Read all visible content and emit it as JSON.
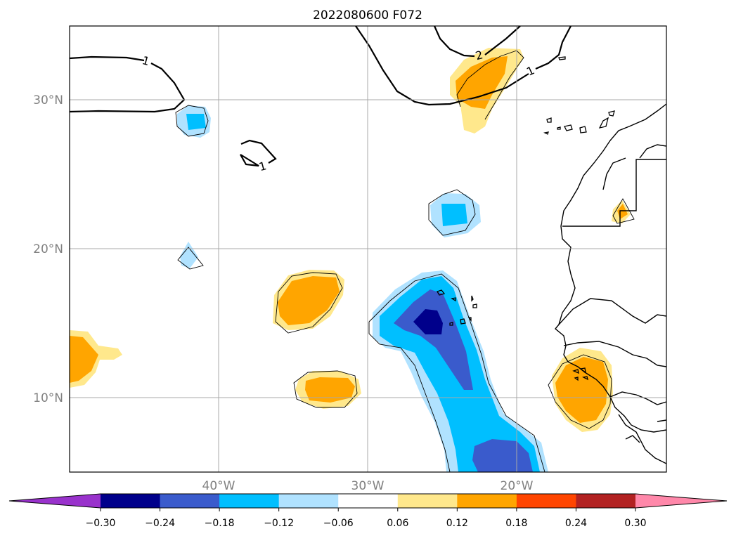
{
  "title": "2022080600 F072",
  "map": {
    "lat_ticks": [
      {
        "value": 30,
        "label": "30°N"
      },
      {
        "value": 20,
        "label": "20°N"
      },
      {
        "value": 10,
        "label": "10°N"
      }
    ],
    "lon_ticks": [
      {
        "value": -40,
        "label": "40°W"
      },
      {
        "value": -30,
        "label": "30°W"
      },
      {
        "value": -20,
        "label": "20°W"
      }
    ],
    "extent": {
      "lon_min": -50,
      "lon_max": -10,
      "lat_min": 5,
      "lat_max": 35
    },
    "contour_labels": [
      "1",
      "2",
      "1",
      "1"
    ]
  },
  "colorbar": {
    "colors": [
      "#9932cc",
      "#00008b",
      "#3a5bcc",
      "#00bfff",
      "#b0e2ff",
      "#ffffff",
      "#ffe88c",
      "#ffa500",
      "#ff4500",
      "#b22222",
      "#ff88aa"
    ],
    "tick_labels": [
      "−0.30",
      "−0.24",
      "−0.18",
      "−0.12",
      "−0.06",
      "0.06",
      "0.12",
      "0.18",
      "0.24",
      "0.30"
    ],
    "levels": [
      -0.3,
      -0.24,
      -0.18,
      -0.12,
      -0.06,
      0.06,
      0.12,
      0.18,
      0.24,
      0.3
    ]
  }
}
